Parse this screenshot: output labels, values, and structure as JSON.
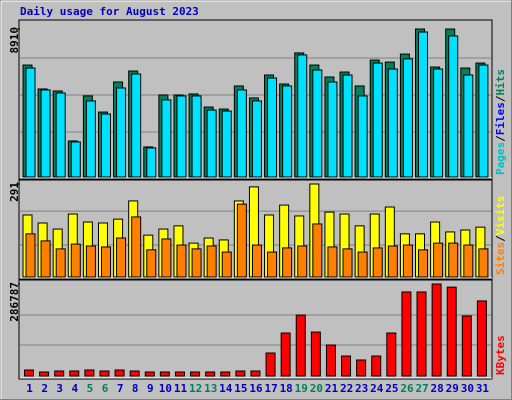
{
  "chart_data": {
    "type": "bar",
    "title": "Daily usage for August 2023",
    "categories": [
      "1",
      "2",
      "3",
      "4",
      "5",
      "6",
      "7",
      "8",
      "9",
      "10",
      "11",
      "12",
      "13",
      "14",
      "15",
      "16",
      "17",
      "18",
      "19",
      "20",
      "21",
      "22",
      "23",
      "24",
      "25",
      "26",
      "27",
      "28",
      "29",
      "30",
      "31"
    ],
    "label_colors": [
      "#0000c0",
      "#0000c0",
      "#0000c0",
      "#0000c0",
      "#00805c",
      "#00805c",
      "#0000c0",
      "#0000c0",
      "#0000c0",
      "#0000c0",
      "#0000c0",
      "#00805c",
      "#00805c",
      "#0000c0",
      "#0000c0",
      "#0000c0",
      "#0000c0",
      "#0000c0",
      "#00805c",
      "#00805c",
      "#0000c0",
      "#0000c0",
      "#0000c0",
      "#0000c0",
      "#0000c0",
      "#00805c",
      "#00805c",
      "#0000c0",
      "#0000c0",
      "#0000c0",
      "#0000c0"
    ],
    "legend_separator": "/",
    "panels": [
      {
        "ylim": [
          0,
          8910
        ],
        "yticks": [
          {
            "value": 8910,
            "label": "8910"
          }
        ],
        "ygrid": [
          2709,
          4937,
          7164
        ],
        "legend": [
          {
            "label": "Pages",
            "color": "#00c0c0"
          },
          {
            "label": "Files",
            "color": "#0000ff"
          },
          {
            "label": "Hits",
            "color": "#00805c"
          }
        ],
        "series": [
          {
            "color": "#00805c",
            "values": [
              6740,
              5300,
              5180,
              2170,
              4880,
              3910,
              5720,
              6380,
              1810,
              4940,
              4940,
              5000,
              4210,
              4090,
              5480,
              4760,
              6140,
              5600,
              7470,
              6740,
              6020,
              6320,
              5480,
              7040,
              6920,
              7400,
              8910,
              6620,
              8910,
              6560,
              6860
            ]
          },
          {
            "color": "#00e0ff",
            "values": [
              6560,
              5240,
              5060,
              2110,
              4580,
              3790,
              5360,
              6200,
              1750,
              4640,
              4880,
              4880,
              4030,
              3970,
              5240,
              4580,
              5960,
              5480,
              7350,
              6440,
              5720,
              6140,
              4880,
              6860,
              6500,
              7110,
              8730,
              6500,
              8490,
              6140,
              6740
            ]
          }
        ]
      },
      {
        "ylim": [
          0,
          291
        ],
        "yticks": [
          291
        ],
        "ygrid": [
          100,
          206
        ],
        "legend": [
          {
            "label": "Sites",
            "color": "#ff8000"
          },
          {
            "label": "Visits",
            "color": "#ffff00"
          }
        ],
        "series": [
          {
            "color": "#ffff00",
            "values": [
              194,
              169,
              150,
              197,
              172,
              169,
              181,
              238,
              131,
              150,
              160,
              106,
              122,
              116,
              238,
              282,
              194,
              225,
              191,
              291,
              203,
              197,
              160,
              197,
              219,
              135,
              135,
              172,
              141,
              147,
              156
            ]
          },
          {
            "color": "#ff8000",
            "values": [
              135,
              113,
              88,
              103,
              97,
              94,
              122,
              188,
              85,
              119,
              100,
              88,
              97,
              78,
              228,
              100,
              78,
              91,
              97,
              166,
              94,
              88,
              78,
              91,
              97,
              100,
              85,
              106,
              106,
              100,
              88
            ]
          }
        ]
      },
      {
        "ylim": [
          0,
          286787
        ],
        "yticks": [
          286787
        ],
        "ygrid": [
          96600,
          190000
        ],
        "legend": [
          {
            "label": "KBytes",
            "color": "#ff0000"
          }
        ],
        "series": [
          {
            "color": "#ff0000",
            "values": [
              18700,
              12500,
              15600,
              15600,
              18700,
              15600,
              18700,
              15600,
              12500,
              12500,
              12500,
              12500,
              12500,
              12500,
              15600,
              15600,
              71700,
              134000,
              190000,
              137000,
              96600,
              62300,
              49900,
              62300,
              134000,
              262000,
              262000,
              286787,
              277000,
              187000,
              234000
            ]
          }
        ]
      }
    ]
  }
}
